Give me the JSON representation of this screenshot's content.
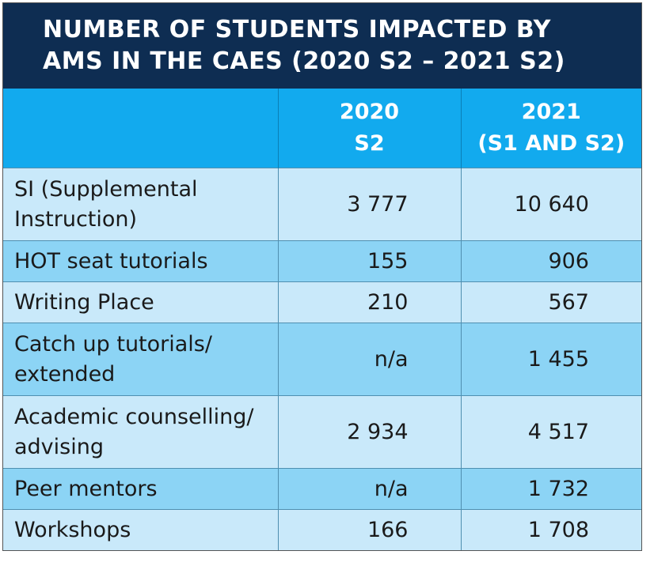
{
  "title_lines": [
    "NUMBER OF STUDENTS IMPACTED BY",
    "AMS IN THE CAES (2020 S2 – 2021 S2)"
  ],
  "chart_data": {
    "type": "table",
    "title": "NUMBER OF STUDENTS IMPACTED BY AMS IN THE CAES (2020 S2 – 2021 S2)",
    "columns": [
      {
        "line1": "",
        "line2": ""
      },
      {
        "line1": "2020",
        "line2": "S2"
      },
      {
        "line1": "2021",
        "line2": "(S1 AND S2)"
      }
    ],
    "rows": [
      {
        "label": [
          "SI (Supplemental",
          "Instruction)"
        ],
        "v2020": "3 777",
        "v2021": "10 640"
      },
      {
        "label": [
          "HOT seat tutorials"
        ],
        "v2020": "155",
        "v2021": "906"
      },
      {
        "label": [
          "Writing Place"
        ],
        "v2020": "210",
        "v2021": "567"
      },
      {
        "label": [
          "Catch up tutorials/",
          "extended"
        ],
        "v2020": "n/a",
        "v2021": "1 455"
      },
      {
        "label": [
          "Academic counselling/",
          "advising"
        ],
        "v2020": "2 934",
        "v2021": "4 517"
      },
      {
        "label": [
          "Peer mentors"
        ],
        "v2020": "n/a",
        "v2021": "1 732"
      },
      {
        "label": [
          "Workshops"
        ],
        "v2020": "166",
        "v2021": "1 708"
      }
    ]
  },
  "colors": {
    "title_bg": "#0e2d52",
    "header_bg": "#12aaee",
    "row_light": "#c9e9fa",
    "row_dark": "#8cd4f5"
  }
}
